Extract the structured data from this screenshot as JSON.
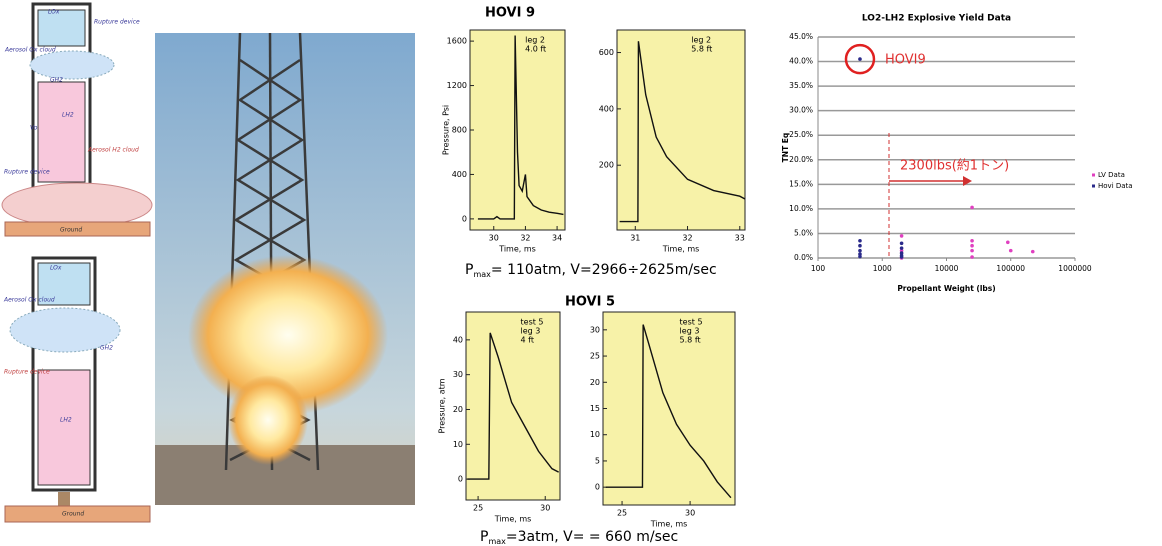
{
  "diagrams": [
    {
      "labels": [
        "LOx",
        "Rupture device",
        "Aerosol Ox cloud",
        "GH2",
        "LH2",
        "Vo",
        "Aerosol H2 cloud",
        "Rupture device",
        "Ground"
      ]
    },
    {
      "labels": [
        "LOx",
        "Aerosol Ox cloud",
        "GH2",
        "Rupture device",
        "LH2",
        "Ground"
      ]
    }
  ],
  "panels": [
    {
      "title": "HOVI 9",
      "caption": {
        "p": "P",
        "sub": "max",
        "rest": "= 110atm, V=2966÷2625m/sec"
      }
    },
    {
      "title": "HOVI 5",
      "caption": {
        "p": "P",
        "sub": "max",
        "rest": "=3atm, V= = 660 m/sec"
      }
    }
  ],
  "chart_data": [
    {
      "type": "scatter",
      "title": "LO2-LH2 Explosive Yield Data",
      "x_label": "Propellant Weight (lbs)",
      "y_label": "TNT Eq",
      "xlim": [
        100,
        1000000
      ],
      "xticks": [
        100,
        1000,
        10000,
        100000,
        1000000
      ],
      "log_x": true,
      "ylim": [
        0,
        45
      ],
      "yticks": [
        {
          "value": 0,
          "label": "0.0%"
        },
        {
          "value": 5,
          "label": "5.0%"
        },
        {
          "value": 10,
          "label": "10.0%"
        },
        {
          "value": 15,
          "label": "15.0%"
        },
        {
          "value": 20,
          "label": "20.0%"
        },
        {
          "value": 25,
          "label": "25.0%"
        },
        {
          "value": 30,
          "label": "30.0%"
        },
        {
          "value": 35,
          "label": "35.0%"
        },
        {
          "value": 40,
          "label": "40.0%"
        },
        {
          "value": 45,
          "label": "45.0%"
        }
      ],
      "grid": true,
      "legend": "right",
      "annotations": [
        "HOVI9",
        "2300lbs(約1トン)"
      ],
      "series": [
        {
          "name": "LV Data",
          "color": "#e040c0",
          "x": [
            2000,
            2000,
            2000,
            25000,
            25000,
            25000,
            25000,
            25000,
            90000,
            100000,
            220000
          ],
          "values": [
            4.5,
            1.5,
            0,
            10.3,
            3.5,
            2.5,
            1.5,
            0.2,
            3.2,
            1.5,
            1.3
          ]
        },
        {
          "name": "Hovi Data",
          "color": "#2a2a8a",
          "x": [
            450,
            450,
            450,
            450,
            450,
            450,
            2000,
            2000,
            2000,
            2000,
            2000
          ],
          "values": [
            40.5,
            3.5,
            2.5,
            1.5,
            0.8,
            0.3,
            3,
            2,
            1,
            0.5,
            0.2
          ]
        }
      ]
    },
    {
      "type": "line",
      "x_label": "Time, ms",
      "y_label": "Pressure, Psi",
      "annotation": [
        "leg 2",
        "4.0 ft"
      ],
      "xlim": [
        28.5,
        34.5
      ],
      "xticks": [
        30,
        32,
        34
      ],
      "ylim": [
        -100,
        1700
      ],
      "yticks": [
        0,
        400,
        800,
        1200,
        1600
      ],
      "color": "#111",
      "x": [
        29,
        30,
        30.2,
        30.4,
        31.3,
        31.35,
        31.5,
        31.6,
        31.8,
        32,
        32.1,
        32.5,
        33,
        33.5,
        34,
        34.4
      ],
      "values": [
        0,
        0,
        20,
        0,
        0,
        1650,
        600,
        300,
        250,
        400,
        200,
        120,
        80,
        60,
        50,
        40
      ]
    },
    {
      "type": "line",
      "x_label": "Time, ms",
      "annotation": [
        "leg 2",
        "5.8 ft"
      ],
      "xlim": [
        30.65,
        33.1
      ],
      "xticks": [
        31,
        32,
        33
      ],
      "ylim": [
        -30,
        680
      ],
      "yticks": [
        200,
        400,
        600
      ],
      "color": "#111",
      "x": [
        30.7,
        31.05,
        31.06,
        31.2,
        31.4,
        31.6,
        32,
        32.5,
        33,
        33.1
      ],
      "values": [
        0,
        0,
        640,
        450,
        300,
        230,
        150,
        110,
        90,
        80
      ]
    },
    {
      "type": "line",
      "x_label": "Time, ms",
      "y_label": "Pressure, atm",
      "annotation": [
        "test 5",
        "leg 3",
        "4 ft"
      ],
      "xlim": [
        24.1,
        31.1
      ],
      "xticks": [
        25,
        30
      ],
      "ylim": [
        -6,
        48
      ],
      "yticks": [
        0,
        10,
        20,
        30,
        40
      ],
      "color": "#111",
      "x": [
        24.2,
        25.8,
        25.9,
        26.5,
        27.5,
        28.5,
        29.5,
        30.5,
        31
      ],
      "values": [
        0,
        0,
        42,
        35,
        22,
        15,
        8,
        3,
        2
      ]
    },
    {
      "type": "line",
      "x_label": "Time, ms",
      "annotation": [
        "test 5",
        "leg 3",
        "5.8 ft"
      ],
      "xlim": [
        23.6,
        33.3
      ],
      "xticks": [
        25,
        30
      ],
      "ylim": [
        -3.4,
        33.4
      ],
      "yticks": [
        0,
        5,
        10,
        15,
        20,
        25,
        30
      ],
      "color": "#111",
      "x": [
        23.8,
        26.5,
        26.55,
        27,
        28,
        29,
        30,
        31,
        32,
        33
      ],
      "values": [
        0,
        0,
        31,
        27,
        18,
        12,
        8,
        5,
        1,
        -2
      ]
    }
  ]
}
